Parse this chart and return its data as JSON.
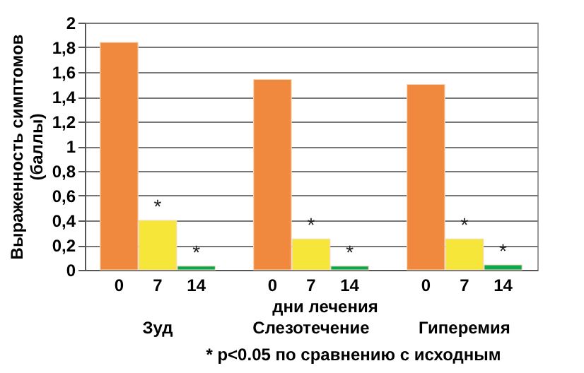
{
  "chart_data": {
    "type": "bar",
    "ylabel": "Выраженность симптомов\n(баллы)",
    "xlabel": "дни лечения",
    "categories": [
      "Зуд",
      "Слезотечение",
      "Гиперемия"
    ],
    "series": [
      {
        "name": "0",
        "color": "#f0883e",
        "values": [
          1.84,
          1.54,
          1.5
        ]
      },
      {
        "name": "7",
        "color": "#f7e63a",
        "values": [
          0.4,
          0.25,
          0.25
        ]
      },
      {
        "name": "14",
        "color": "#0aa84f",
        "values": [
          0.03,
          0.03,
          0.04
        ]
      }
    ],
    "ylim": [
      0,
      2
    ],
    "yticks": [
      0,
      {
        "value": 0.2,
        "label": "0,2"
      },
      {
        "value": 0.4,
        "label": "0,4"
      },
      {
        "value": 0.6,
        "label": "0,6"
      },
      {
        "value": 0.8,
        "label": "0,8"
      },
      1,
      {
        "value": 1.2,
        "label": "1,2"
      },
      {
        "value": 1.4,
        "label": "1,4"
      },
      {
        "value": 1.6,
        "label": "1,6"
      },
      {
        "value": 1.8,
        "label": "1,8"
      },
      2
    ],
    "grid": "y",
    "annotations": [
      {
        "text": "*",
        "x": "Зуд",
        "y": 0.4
      },
      {
        "text": "*",
        "x": "Зуд",
        "y": 0.03
      },
      {
        "text": "*",
        "x": "Слезотечение",
        "y": 0.25
      },
      {
        "text": "*",
        "x": "Слезотечение",
        "y": 0.03
      },
      {
        "text": "*",
        "x": "Гиперемия",
        "y": 0.25
      },
      {
        "text": "*",
        "x": "Гиперемия",
        "y": 0.04
      },
      "* p<0.05 по сравнению с исходным"
    ]
  }
}
